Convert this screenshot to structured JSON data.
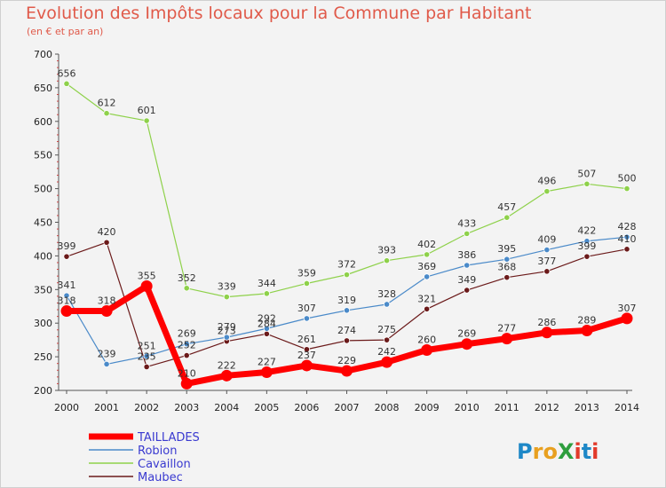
{
  "title": "Evolution des Impôts locaux pour la Commune par Habitant",
  "subtitle": "(en € et par an)",
  "logo": {
    "text": "ProXiti",
    "colors": [
      "#1e88c7",
      "#e8a020",
      "#2e9e3e",
      "#e23a2a"
    ]
  },
  "chart_data": {
    "type": "line",
    "x": [
      2000,
      2001,
      2002,
      2003,
      2004,
      2005,
      2006,
      2007,
      2008,
      2009,
      2010,
      2011,
      2012,
      2013,
      2014
    ],
    "ylim": [
      200,
      700
    ],
    "yticks": [
      200,
      250,
      300,
      350,
      400,
      450,
      500,
      550,
      600,
      650,
      700
    ],
    "grid": false,
    "legend_position": "bottom-left",
    "series": [
      {
        "name": "TAILLADES",
        "color": "#ff0000",
        "values": [
          318,
          318,
          355,
          210,
          222,
          227,
          237,
          229,
          242,
          260,
          269,
          277,
          286,
          289,
          307
        ]
      },
      {
        "name": "Robion",
        "color": "#4a8ac9",
        "values": [
          341,
          239,
          251,
          269,
          279,
          292,
          307,
          319,
          328,
          369,
          386,
          395,
          409,
          422,
          428
        ]
      },
      {
        "name": "Cavaillon",
        "color": "#8ed14a",
        "values": [
          656,
          612,
          601,
          352,
          339,
          344,
          359,
          372,
          393,
          402,
          433,
          457,
          496,
          507,
          500
        ]
      },
      {
        "name": "Maubec",
        "color": "#6b1a1a",
        "values": [
          399,
          420,
          235,
          252,
          273,
          284,
          261,
          274,
          275,
          321,
          349,
          368,
          377,
          399,
          410
        ]
      }
    ]
  }
}
